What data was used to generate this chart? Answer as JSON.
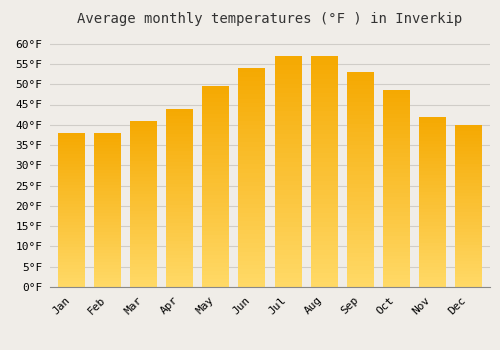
{
  "title": "Average monthly temperatures (°F ) in Inverkip",
  "months": [
    "Jan",
    "Feb",
    "Mar",
    "Apr",
    "May",
    "Jun",
    "Jul",
    "Aug",
    "Sep",
    "Oct",
    "Nov",
    "Dec"
  ],
  "values": [
    38,
    38,
    41,
    44,
    49.5,
    54,
    57,
    57,
    53,
    48.5,
    42,
    40
  ],
  "bar_color_top": "#F5A800",
  "bar_color_bottom": "#FFD966",
  "ylim": [
    0,
    63
  ],
  "yticks": [
    0,
    5,
    10,
    15,
    20,
    25,
    30,
    35,
    40,
    45,
    50,
    55,
    60
  ],
  "background_color": "#f0ede8",
  "plot_bg_color": "#f0ede8",
  "grid_color": "#d0cdc8",
  "title_fontsize": 10,
  "tick_fontsize": 8,
  "bar_width": 0.75
}
